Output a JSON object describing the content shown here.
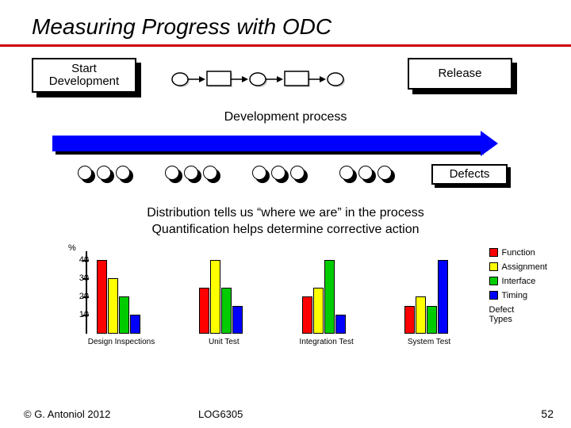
{
  "title": "Measuring Progress with ODC",
  "boxes": {
    "start": "Start\nDevelopment",
    "release": "Release"
  },
  "process_label": "Development process",
  "defects_label": "Defects",
  "body_line1": "Distribution tells us “where we are” in the process",
  "body_line2": "Quantification helps determine corrective action",
  "chart": {
    "ylabel": "%",
    "yticks": [
      40,
      30,
      20,
      10
    ],
    "ymax": 45,
    "categories": [
      "Design Inspections",
      "Unit Test",
      "Integration Test",
      "System Test"
    ],
    "series": [
      "Function",
      "Assignment",
      "Interface",
      "Timing"
    ],
    "colors": {
      "Function": "#ff0000",
      "Assignment": "#ffff00",
      "Interface": "#00cc00",
      "Timing": "#0000ff"
    },
    "values": {
      "Design Inspections": [
        40,
        30,
        20,
        10
      ],
      "Unit Test": [
        25,
        40,
        25,
        15
      ],
      "Integration Test": [
        20,
        25,
        40,
        10
      ],
      "System Test": [
        15,
        20,
        15,
        40
      ]
    },
    "legend_title": "Defect\nTypes"
  },
  "footer": {
    "copyright": "© G. Antoniol 2012",
    "course": "LOG6305",
    "page": "52"
  }
}
